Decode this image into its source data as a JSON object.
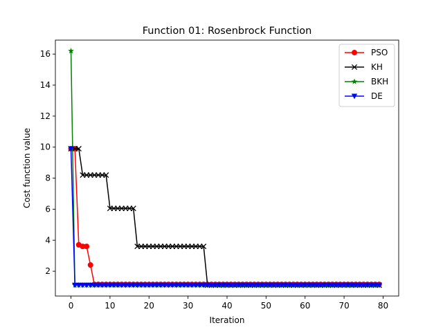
{
  "chart_data": {
    "type": "line",
    "title": "Function 01: Rosenbrock Function",
    "xlabel": "Iteration",
    "ylabel": "Cost function value",
    "xlim": [
      -4,
      84
    ],
    "ylim": [
      0.4,
      16.9
    ],
    "xticks": [
      0,
      10,
      20,
      30,
      40,
      50,
      60,
      70,
      80
    ],
    "yticks": [
      2,
      4,
      6,
      8,
      10,
      12,
      14,
      16
    ],
    "grid": false,
    "legend_position": "top-right",
    "series": [
      {
        "name": "PSO",
        "color": "#ff0000",
        "marker": "circle",
        "segments": [
          {
            "from": 0,
            "to": 0,
            "value": 9.9
          },
          {
            "from": 1,
            "to": 1,
            "value": 9.9
          },
          {
            "from": 2,
            "to": 2,
            "value": 3.7
          },
          {
            "from": 3,
            "to": 3,
            "value": 3.6
          },
          {
            "from": 4,
            "to": 4,
            "value": 3.6
          },
          {
            "from": 5,
            "to": 5,
            "value": 2.4
          },
          {
            "from": 6,
            "to": 79,
            "value": 1.15
          }
        ]
      },
      {
        "name": "KH",
        "color": "#000000",
        "marker": "x",
        "segments": [
          {
            "from": 0,
            "to": 2,
            "value": 9.9
          },
          {
            "from": 3,
            "to": 9,
            "value": 8.2
          },
          {
            "from": 10,
            "to": 16,
            "value": 6.05
          },
          {
            "from": 17,
            "to": 34,
            "value": 3.6
          },
          {
            "from": 35,
            "to": 79,
            "value": 1.1
          }
        ]
      },
      {
        "name": "BKH",
        "color": "#008000",
        "marker": "star",
        "segments": [
          {
            "from": 0,
            "to": 0,
            "value": 16.2
          },
          {
            "from": 1,
            "to": 79,
            "value": 1.1
          }
        ]
      },
      {
        "name": "DE",
        "color": "#0000ff",
        "marker": "triangle-down",
        "segments": [
          {
            "from": 0,
            "to": 0,
            "value": 9.9
          },
          {
            "from": 1,
            "to": 79,
            "value": 1.1
          }
        ]
      }
    ]
  }
}
